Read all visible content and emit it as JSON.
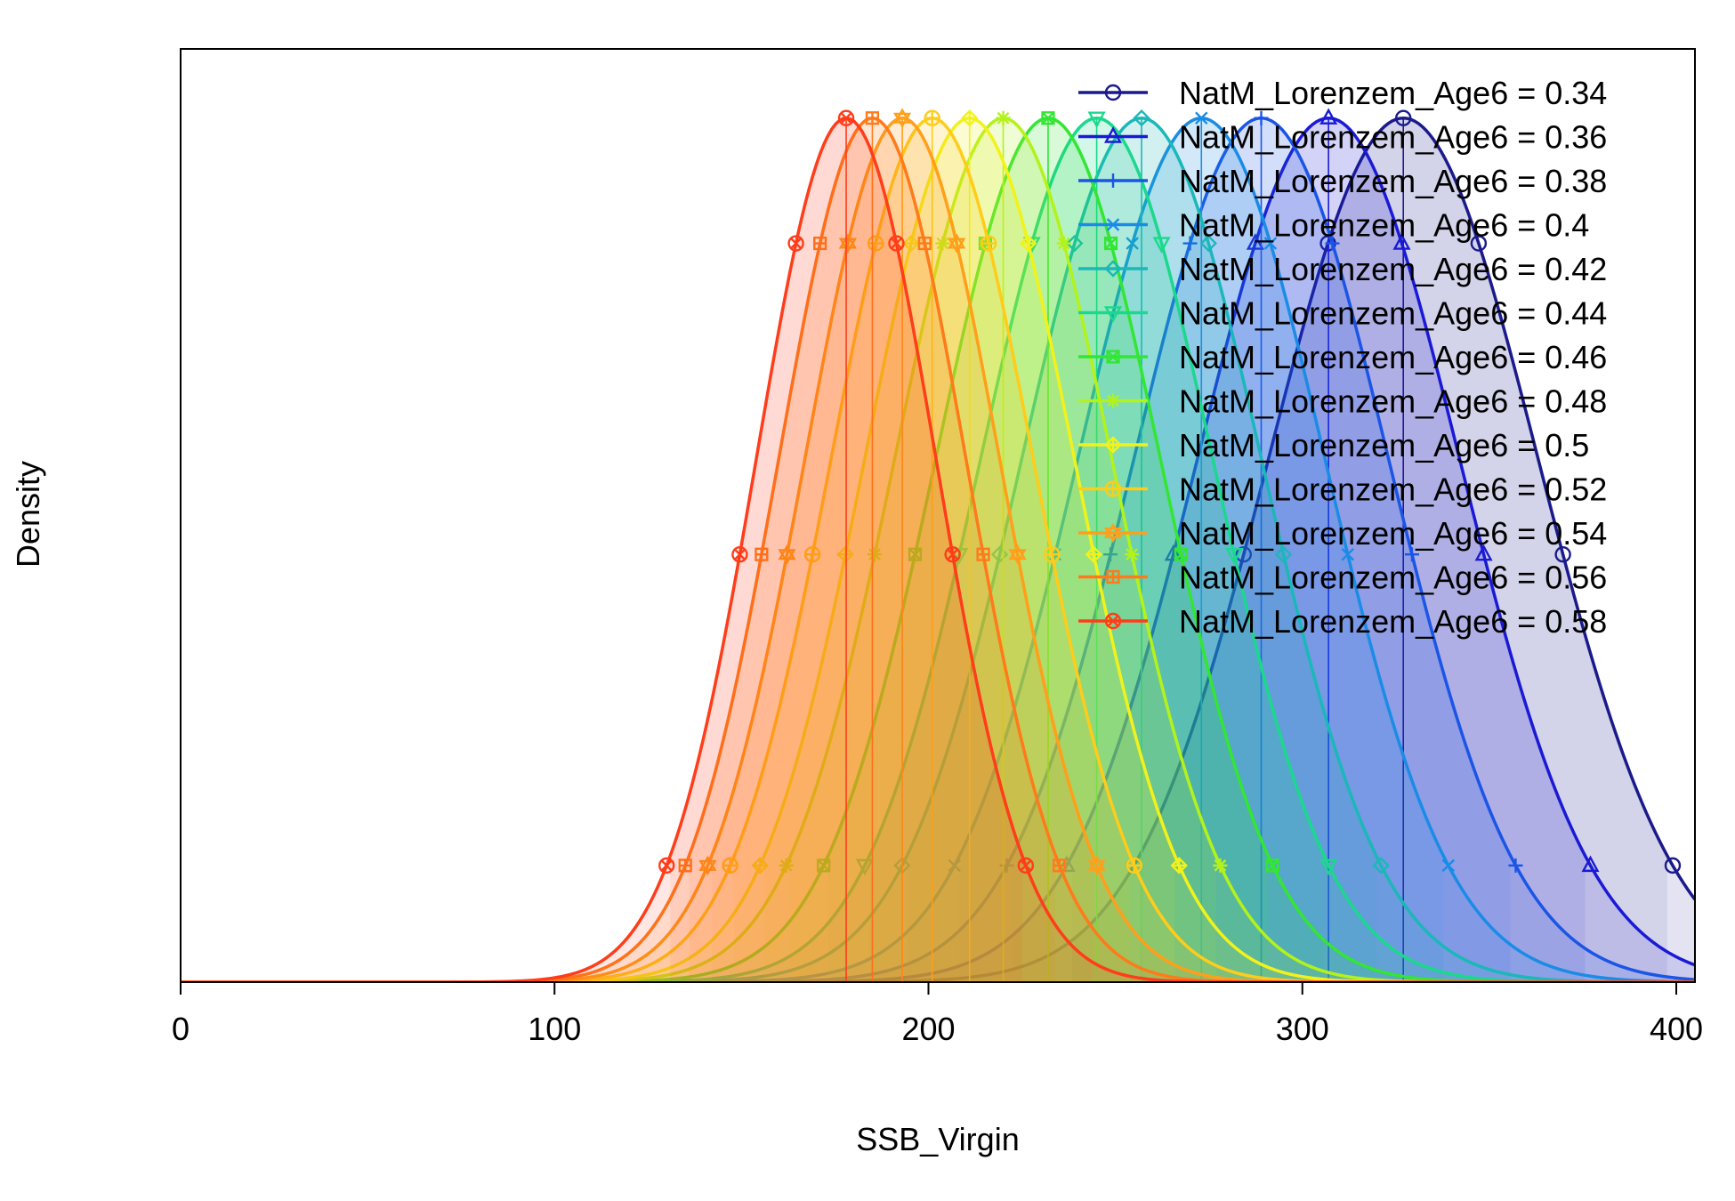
{
  "chart_data": {
    "type": "area",
    "xlabel": "SSB_Virgin",
    "ylabel": "Density",
    "xlim": [
      0,
      405
    ],
    "ylim": [
      0,
      1.08
    ],
    "x_ticks": [
      0,
      100,
      200,
      300,
      400
    ],
    "y_ticks_shown": false,
    "grid": false,
    "legend_position": "top-right",
    "series": [
      {
        "name": "NatM_Lorenzem_Age6 = 0.34",
        "mean": 327,
        "sd": 36,
        "color": "#1a1a8c",
        "marker": "circle"
      },
      {
        "name": "NatM_Lorenzem_Age6 = 0.36",
        "mean": 307,
        "sd": 35,
        "color": "#1a1ad6",
        "marker": "triangle-up"
      },
      {
        "name": "NatM_Lorenzem_Age6 = 0.38",
        "mean": 289,
        "sd": 34,
        "color": "#1a55e6",
        "marker": "plus"
      },
      {
        "name": "NatM_Lorenzem_Age6 = 0.4",
        "mean": 273,
        "sd": 33,
        "color": "#1a8ce6",
        "marker": "cross"
      },
      {
        "name": "NatM_Lorenzem_Age6 = 0.42",
        "mean": 257,
        "sd": 32,
        "color": "#1ab8b8",
        "marker": "diamond"
      },
      {
        "name": "NatM_Lorenzem_Age6 = 0.44",
        "mean": 245,
        "sd": 31,
        "color": "#1ad98c",
        "marker": "triangle-down"
      },
      {
        "name": "NatM_Lorenzem_Age6 = 0.46",
        "mean": 232,
        "sd": 30,
        "color": "#33e633",
        "marker": "square-x"
      },
      {
        "name": "NatM_Lorenzem_Age6 = 0.48",
        "mean": 220,
        "sd": 29,
        "color": "#b3f21a",
        "marker": "asterisk"
      },
      {
        "name": "NatM_Lorenzem_Age6 = 0.5",
        "mean": 211,
        "sd": 28,
        "color": "#f2f21a",
        "marker": "diamond-plus"
      },
      {
        "name": "NatM_Lorenzem_Age6 = 0.52",
        "mean": 201,
        "sd": 27,
        "color": "#ffcc1a",
        "marker": "circle-plus"
      },
      {
        "name": "NatM_Lorenzem_Age6 = 0.54",
        "mean": 193,
        "sd": 26,
        "color": "#ff9f1a",
        "marker": "star-of-david"
      },
      {
        "name": "NatM_Lorenzem_Age6 = 0.56",
        "mean": 185,
        "sd": 25,
        "color": "#ff7a1a",
        "marker": "square-plus"
      },
      {
        "name": "NatM_Lorenzem_Age6 = 0.58",
        "mean": 178,
        "sd": 24,
        "color": "#ff3d1a",
        "marker": "circle-x"
      }
    ]
  }
}
